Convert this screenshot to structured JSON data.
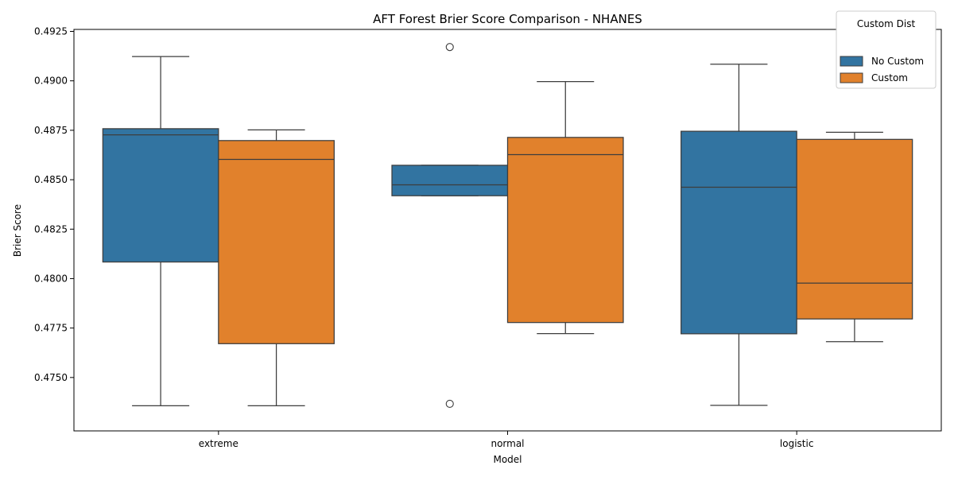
{
  "chart_data": {
    "type": "box",
    "title": "AFT Forest Brier Score Comparison - NHANES",
    "xlabel": "Model",
    "ylabel": "Brier Score",
    "ylim": [
      0.4723,
      0.4926
    ],
    "yticks": [
      "0.4750",
      "0.4775",
      "0.4800",
      "0.4825",
      "0.4850",
      "0.4875",
      "0.4900",
      "0.4925"
    ],
    "yticks_values": [
      0.475,
      0.4775,
      0.48,
      0.4825,
      0.485,
      0.4875,
      0.49,
      0.4925
    ],
    "categories": [
      "extreme",
      "normal",
      "logistic"
    ],
    "legend": {
      "title": "Custom Dist",
      "placement": "top-right"
    },
    "grid": false,
    "series": [
      {
        "name": "No Custom",
        "color": "#3274a1",
        "boxes": [
          {
            "category": "extreme",
            "whisker_low": 0.47357,
            "q1": 0.48084,
            "median": 0.48727,
            "q3": 0.48758,
            "whisker_high": 0.49123,
            "outliers": []
          },
          {
            "category": "normal",
            "whisker_low": 0.48419,
            "q1": 0.48419,
            "median": 0.48474,
            "q3": 0.48573,
            "whisker_high": 0.48573,
            "outliers": [
              0.49171,
              0.47367
            ]
          },
          {
            "category": "logistic",
            "whisker_low": 0.47359,
            "q1": 0.47721,
            "median": 0.48462,
            "q3": 0.48745,
            "whisker_high": 0.49084,
            "outliers": []
          }
        ]
      },
      {
        "name": "Custom",
        "color": "#e1812c",
        "boxes": [
          {
            "category": "extreme",
            "whisker_low": 0.47357,
            "q1": 0.47671,
            "median": 0.48603,
            "q3": 0.48698,
            "whisker_high": 0.48752,
            "outliers": []
          },
          {
            "category": "normal",
            "whisker_low": 0.47722,
            "q1": 0.47778,
            "median": 0.48627,
            "q3": 0.48714,
            "whisker_high": 0.48996,
            "outliers": []
          },
          {
            "category": "logistic",
            "whisker_low": 0.47681,
            "q1": 0.47796,
            "median": 0.47977,
            "q3": 0.48704,
            "whisker_high": 0.4874,
            "outliers": []
          }
        ]
      }
    ]
  }
}
